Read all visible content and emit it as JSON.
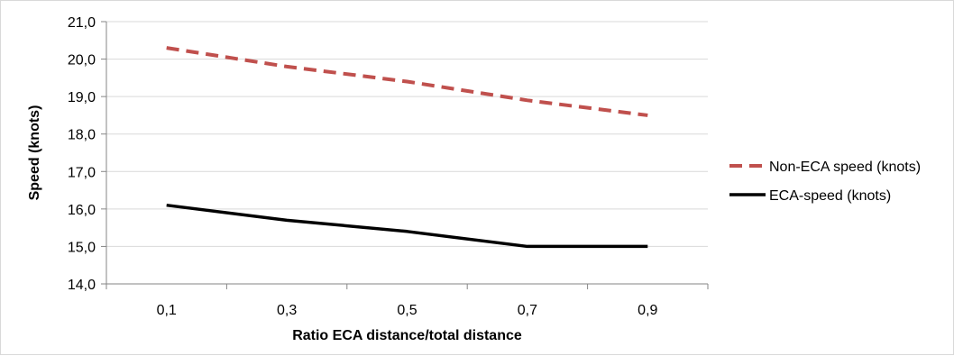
{
  "chart_data": {
    "type": "line",
    "title": "",
    "xlabel": "Ratio ECA distance/total distance",
    "ylabel": "Speed (knots)",
    "categories": [
      "0,1",
      "0,3",
      "0,5",
      "0,7",
      "0,9"
    ],
    "x": [
      0.1,
      0.3,
      0.5,
      0.7,
      0.9
    ],
    "ylim": [
      14.0,
      21.0
    ],
    "yticks": [
      "14,0",
      "15,0",
      "16,0",
      "17,0",
      "18,0",
      "19,0",
      "20,0",
      "21,0"
    ],
    "grid": true,
    "legend": "right",
    "series": [
      {
        "name": "Non-ECA speed (knots)",
        "values": [
          20.3,
          19.8,
          19.4,
          18.9,
          18.5
        ],
        "color": "#c0504d",
        "style": "dashed"
      },
      {
        "name": "ECA-speed (knots)",
        "values": [
          16.1,
          15.7,
          15.4,
          15.0,
          15.0
        ],
        "color": "#000000",
        "style": "solid"
      }
    ]
  }
}
